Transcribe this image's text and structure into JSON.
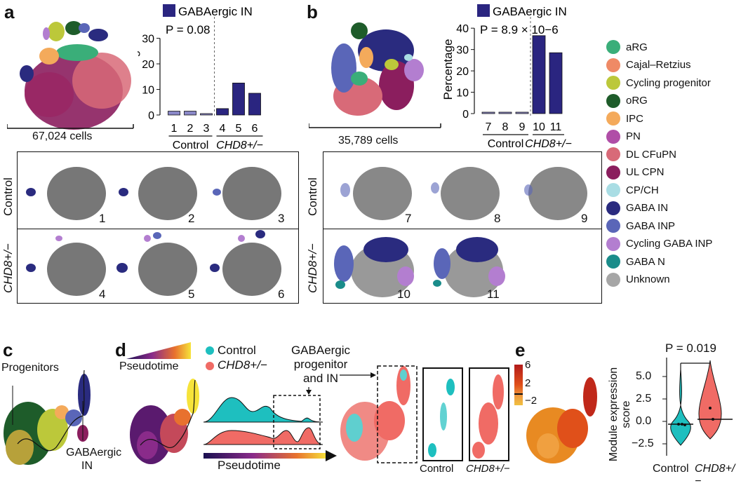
{
  "panels": {
    "a": "a",
    "b": "b",
    "c": "c",
    "d": "d",
    "e": "e"
  },
  "panel_a": {
    "cell_count": "67,024 cells",
    "legend_label": "GABAergic IN",
    "p_value": "P = 0.08",
    "ylabel": "Percentage",
    "group_control": "Control",
    "group_chd8": "CHD8+/−"
  },
  "panel_b": {
    "cell_count": "35,789 cells",
    "legend_label": "GABAergic IN",
    "p_value": "P = 8.9 × 10−6",
    "ylabel": "Percentage",
    "group_control": "Control",
    "group_chd8": "CHD8+/−"
  },
  "row_labels": {
    "control": "Control",
    "chd8": "CHD8+/−"
  },
  "samples_a_control": [
    "1",
    "2",
    "3"
  ],
  "samples_a_chd8": [
    "4",
    "5",
    "6"
  ],
  "samples_b_control": [
    "7",
    "8",
    "9"
  ],
  "samples_b_chd8": [
    "10",
    "11"
  ],
  "legend": [
    {
      "label": "aRG",
      "color": "#3aae79"
    },
    {
      "label": "Cajal–Retzius",
      "color": "#ef8a66"
    },
    {
      "label": "Cycling progenitor",
      "color": "#bcc83a"
    },
    {
      "label": "oRG",
      "color": "#1e5c2a"
    },
    {
      "label": "IPC",
      "color": "#f4aa5b"
    },
    {
      "label": "PN",
      "color": "#b04ea7"
    },
    {
      "label": "DL CFuPN",
      "color": "#d86a78"
    },
    {
      "label": "UL CPN",
      "color": "#8b1e5e"
    },
    {
      "label": "CP/CH",
      "color": "#a9dde4"
    },
    {
      "label": "GABA IN",
      "color": "#2a2b7f"
    },
    {
      "label": "GABA INP",
      "color": "#5a66b8"
    },
    {
      "label": "Cycling GABA INP",
      "color": "#b37ed0"
    },
    {
      "label": "GABA N",
      "color": "#1a8c8a"
    },
    {
      "label": "Unknown",
      "color": "#a6a6a6"
    }
  ],
  "panel_c": {
    "progenitors": "Progenitors",
    "gabaergic": "GABAergic",
    "in": "IN"
  },
  "panel_d": {
    "pseudotime": "Pseudotime",
    "pseudotime_axis": "Pseudotime",
    "legend_control": "Control",
    "legend_chd8": "CHD8+/−",
    "annot_line1": "GABAergic",
    "annot_line2": "progenitor",
    "annot_line3": "and IN",
    "scale_ticks": [
      "6",
      "2",
      "−2"
    ],
    "inset_control": "Control",
    "inset_chd8": "CHD8+/−"
  },
  "panel_e": {
    "p_value": "P = 0.019",
    "ylabel_line1": "Module expression",
    "ylabel_line2": "score",
    "yticks": [
      "5.0",
      "2.5",
      "0.0",
      "−2.5"
    ],
    "x_control": "Control",
    "x_chd8": "CHD8+/−"
  },
  "chart_data": [
    {
      "type": "bar",
      "title": "GABAergic IN",
      "annotation": "P = 0.08",
      "categories": [
        "1",
        "2",
        "3",
        "4",
        "5",
        "6"
      ],
      "groups": {
        "Control": [
          "1",
          "2",
          "3"
        ],
        "CHD8+/−": [
          "4",
          "5",
          "6"
        ]
      },
      "values": [
        1.5,
        1.5,
        0.2,
        2.5,
        12.5,
        8.5
      ],
      "ylabel": "Percentage",
      "yticks": [
        0,
        10,
        20,
        30
      ],
      "ylim": [
        0,
        34
      ],
      "color": "#2a2580"
    },
    {
      "type": "bar",
      "title": "GABAergic IN",
      "annotation": "P = 8.9 × 10−6",
      "categories": [
        "7",
        "8",
        "9",
        "10",
        "11"
      ],
      "groups": {
        "Control": [
          "7",
          "8",
          "9"
        ],
        "CHD8+/−": [
          "10",
          "11"
        ]
      },
      "values": [
        0.3,
        0.3,
        0.3,
        36.5,
        28.5
      ],
      "ylabel": "Percentage",
      "yticks": [
        0,
        10,
        20,
        30,
        40
      ],
      "ylim": [
        0,
        44
      ],
      "color": "#2a2580"
    }
  ]
}
